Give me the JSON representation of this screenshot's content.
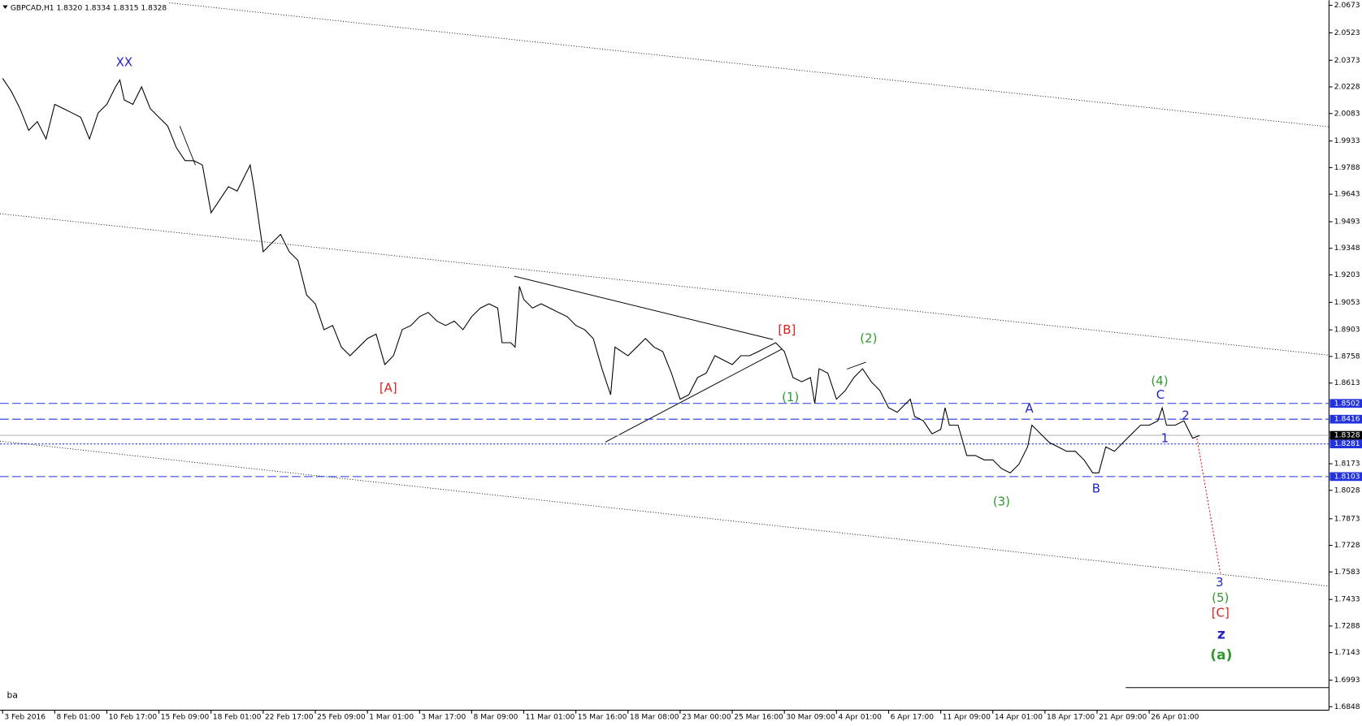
{
  "chart_data": {
    "type": "line",
    "header": "GBPCAD,H1  1.8320 1.8334 1.8315 1.8328",
    "footer": "ba",
    "color": "#000000",
    "x": [
      0,
      10,
      20,
      30,
      40,
      50,
      60,
      70,
      80,
      90,
      100,
      110,
      120,
      130,
      135,
      140,
      150,
      160,
      170,
      180,
      190,
      200,
      210,
      220,
      230,
      240,
      250,
      260,
      270,
      280,
      285,
      290,
      300,
      310,
      320,
      330,
      340,
      350,
      360,
      370,
      380,
      390,
      400,
      410,
      420,
      430,
      440,
      450,
      460,
      470,
      480,
      490,
      500,
      510,
      520,
      530,
      540,
      550,
      560,
      570,
      575,
      585,
      590,
      595,
      600,
      610,
      620,
      630,
      640,
      650,
      660,
      670,
      680,
      690,
      700,
      705,
      720,
      730,
      740,
      750,
      760,
      770,
      780,
      790,
      800,
      810,
      820,
      830,
      840,
      850,
      860,
      870,
      880,
      890,
      900,
      910,
      920,
      930,
      935,
      940,
      950,
      960,
      970,
      980,
      990,
      1000,
      1010,
      1020,
      1030,
      1040,
      1045,
      1050,
      1060,
      1070,
      1080,
      1085,
      1090,
      1100,
      1110,
      1120,
      1130,
      1140,
      1150,
      1160,
      1170,
      1180,
      1185,
      1195,
      1205,
      1215,
      1225,
      1235,
      1245,
      1255,
      1262,
      1270,
      1280,
      1290,
      1300,
      1310,
      1320,
      1330,
      1335,
      1340,
      1350,
      1360,
      1370,
      1378
    ],
    "values": [
      2.0275,
      2.0204,
      2.011,
      1.9991,
      2.0039,
      1.9944,
      2.0133,
      2.011,
      2.0086,
      2.0062,
      1.9944,
      2.0086,
      2.0133,
      2.0228,
      2.0266,
      2.0157,
      2.0133,
      2.0228,
      2.011,
      2.0062,
      2.0015,
      1.9897,
      1.9826,
      1.9826,
      1.9802,
      1.9542,
      1.9613,
      1.9684,
      1.966,
      1.9755,
      1.9802,
      1.966,
      1.9329,
      1.9377,
      1.9424,
      1.9329,
      1.9282,
      1.9093,
      1.9045,
      1.8904,
      1.8927,
      1.8809,
      1.8762,
      1.8809,
      1.8856,
      1.888,
      1.8714,
      1.8762,
      1.8904,
      1.8927,
      1.8975,
      1.8998,
      1.8951,
      1.8927,
      1.8951,
      1.8904,
      1.8975,
      1.9022,
      1.9045,
      1.9022,
      1.8833,
      1.8833,
      1.8809,
      1.914,
      1.9069,
      1.9022,
      1.9045,
      1.9022,
      1.8998,
      1.8975,
      1.8927,
      1.8904,
      1.8856,
      1.8691,
      1.8549,
      1.8809,
      1.8762,
      1.8809,
      1.8856,
      1.8809,
      1.8785,
      1.8667,
      1.8525,
      1.8549,
      1.8643,
      1.8667,
      1.8762,
      1.8738,
      1.8714,
      1.8762,
      1.8762,
      1.8785,
      1.8809,
      1.8833,
      1.8785,
      1.8643,
      1.862,
      1.8643,
      1.8502,
      1.8691,
      1.8667,
      1.8525,
      1.8572,
      1.8643,
      1.8691,
      1.862,
      1.8572,
      1.8478,
      1.8454,
      1.8502,
      1.8525,
      1.8431,
      1.8407,
      1.8336,
      1.836,
      1.8478,
      1.8383,
      1.8383,
      1.8218,
      1.8218,
      1.8194,
      1.8194,
      1.8147,
      1.8123,
      1.817,
      1.8265,
      1.8383,
      1.8336,
      1.8289,
      1.8265,
      1.8241,
      1.8241,
      1.8194,
      1.8123,
      1.8123,
      1.8265,
      1.8241,
      1.8289,
      1.8336,
      1.8383,
      1.8383,
      1.8407,
      1.8478,
      1.8383,
      1.8383,
      1.8407,
      1.8312,
      1.8327
    ],
    "xlim": [
      -3,
      1527
    ],
    "xticks": [
      {
        "value": 0,
        "label": "3 Feb 2016"
      },
      {
        "value": 60,
        "label": "8 Feb 01:00"
      },
      {
        "value": 120,
        "label": "10 Feb 17:00"
      },
      {
        "value": 180,
        "label": "15 Feb 09:00"
      },
      {
        "value": 240,
        "label": "18 Feb 01:00"
      },
      {
        "value": 300,
        "label": "22 Feb 17:00"
      },
      {
        "value": 360,
        "label": "25 Feb 09:00"
      },
      {
        "value": 420,
        "label": "1 Mar 01:00"
      },
      {
        "value": 480,
        "label": "3 Mar 17:00"
      },
      {
        "value": 540,
        "label": "8 Mar 09:00"
      },
      {
        "value": 600,
        "label": "11 Mar 01:00"
      },
      {
        "value": 660,
        "label": "15 Mar 16:00"
      },
      {
        "value": 720,
        "label": "18 Mar 08:00"
      },
      {
        "value": 780,
        "label": "23 Mar 00:00"
      },
      {
        "value": 840,
        "label": "25 Mar 16:00"
      },
      {
        "value": 900,
        "label": "30 Mar 09:00"
      },
      {
        "value": 960,
        "label": "4 Apr 01:00"
      },
      {
        "value": 1020,
        "label": "6 Apr 17:00"
      },
      {
        "value": 1080,
        "label": "11 Apr 09:00"
      },
      {
        "value": 1140,
        "label": "14 Apr 01:00"
      },
      {
        "value": 1200,
        "label": "18 Apr 17:00"
      },
      {
        "value": 1260,
        "label": "21 Apr 09:00"
      },
      {
        "value": 1320,
        "label": "26 Apr 01:00"
      }
    ],
    "ylim": [
      1.6829,
      2.0701
    ],
    "yticks": [
      2.0673,
      2.0523,
      2.0373,
      2.0228,
      2.0083,
      1.9933,
      1.9788,
      1.9643,
      1.9493,
      1.9348,
      1.9203,
      1.9053,
      1.8903,
      1.8758,
      1.8613,
      1.8173,
      1.8028,
      1.7873,
      1.7728,
      1.7583,
      1.7433,
      1.7288,
      1.7143,
      1.6993,
      1.6848
    ],
    "levels": [
      1.8502,
      1.8416,
      1.8328,
      1.8281,
      1.8103
    ],
    "annotations": [
      {
        "text": "XX",
        "color": "#2222cc"
      },
      {
        "text": "[A]",
        "color": "#e02020"
      },
      {
        "text": "[B]",
        "color": "#e02020"
      },
      {
        "text": "(1)",
        "color": "#2e9a2e"
      },
      {
        "text": "(2)",
        "color": "#2e9a2e"
      },
      {
        "text": "(3)",
        "color": "#2e9a2e"
      },
      {
        "text": "A",
        "color": "#2222cc"
      },
      {
        "text": "B",
        "color": "#2222cc"
      },
      {
        "text": "(4)",
        "color": "#2e9a2e"
      },
      {
        "text": "C",
        "color": "#2222cc"
      },
      {
        "text": "2",
        "color": "#2222cc"
      },
      {
        "text": "1",
        "color": "#2222cc"
      },
      {
        "text": "3",
        "color": "#2222cc"
      },
      {
        "text": "(5)",
        "color": "#2e9a2e"
      },
      {
        "text": "[C]",
        "color": "#e02020"
      },
      {
        "text": "z",
        "color": "#2222cc"
      },
      {
        "text": "(a)",
        "color": "#2e9a2e"
      }
    ]
  }
}
